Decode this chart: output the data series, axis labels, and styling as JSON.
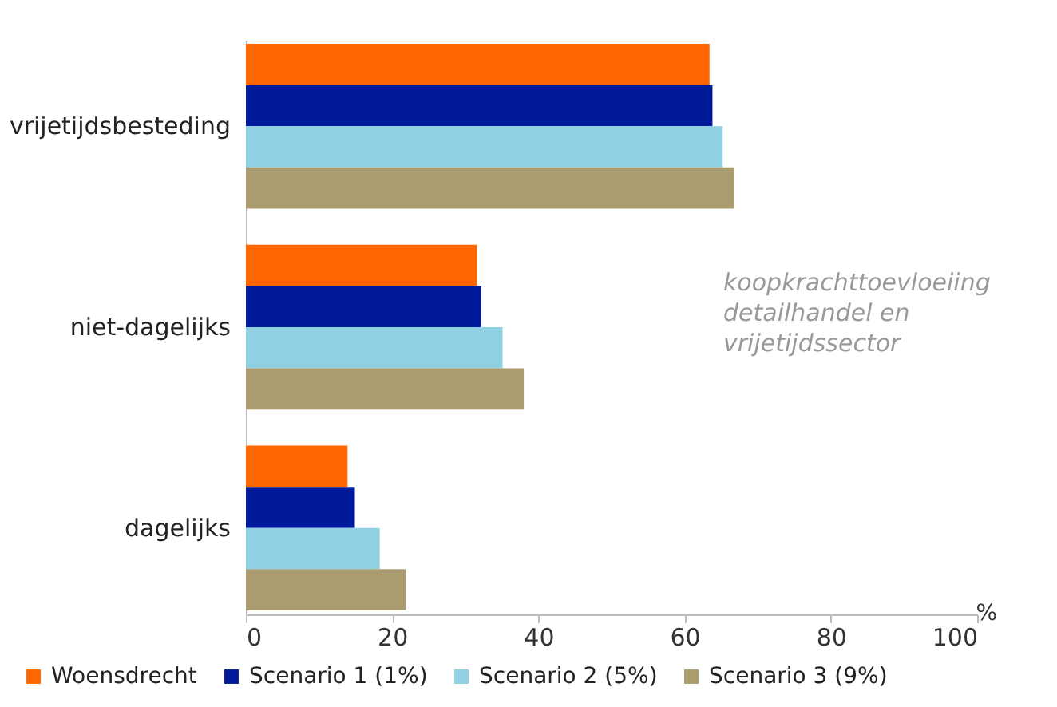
{
  "chart_data": {
    "type": "bar",
    "orientation": "horizontal",
    "categories": [
      "vrijetijdsbesteding",
      "niet-dagelijks",
      "dagelijks"
    ],
    "series": [
      {
        "name": "Woensdrecht",
        "color": "#ff6600",
        "values": [
          63.4,
          31.6,
          13.9
        ]
      },
      {
        "name": "Scenario 1 (1%)",
        "color": "#001a99",
        "values": [
          63.8,
          32.2,
          14.9
        ]
      },
      {
        "name": "Scenario 2 (5%)",
        "color": "#8fd1e2",
        "values": [
          65.2,
          35.1,
          18.3
        ]
      },
      {
        "name": "Scenario 3 (9%)",
        "color": "#ab9c70",
        "values": [
          66.8,
          38.0,
          21.9
        ]
      }
    ],
    "xlim": [
      0,
      100
    ],
    "xticks": [
      0,
      20,
      40,
      60,
      80,
      100
    ],
    "xlabel": "%",
    "grid": false,
    "legend": "bottom",
    "annotations": [
      "koopkrachttoevloeiing detailhandel en vrijetijdssector"
    ]
  }
}
